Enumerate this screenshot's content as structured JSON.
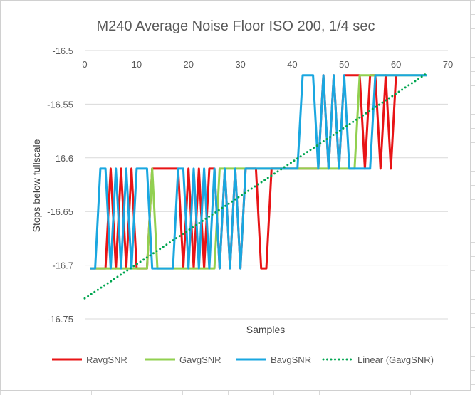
{
  "chart_data": {
    "type": "line",
    "title": "M240 Average Noise Floor ISO 200, 1/4 sec",
    "xlabel": "Samples",
    "ylabel": "Stops below fullscale",
    "xlim": [
      0,
      70
    ],
    "ylim": [
      -16.75,
      -16.5
    ],
    "x_ticks": [
      0,
      10,
      20,
      30,
      40,
      50,
      60,
      70
    ],
    "y_ticks": [
      -16.5,
      -16.55,
      -16.6,
      -16.65,
      -16.7,
      -16.75
    ],
    "y_tick_labels": [
      "-16.5",
      "-16.55",
      "-16.6",
      "-16.65",
      "-16.7",
      "-16.75"
    ],
    "grid": "horizontal",
    "legend_position": "bottom",
    "series": [
      {
        "name": "RavgSNR",
        "color": "#e81416",
        "style": "solid",
        "x": [
          1,
          2,
          3,
          4,
          5,
          6,
          7,
          8,
          9,
          10,
          11,
          12,
          13,
          14,
          15,
          16,
          17,
          18,
          19,
          20,
          21,
          22,
          23,
          24,
          25,
          26,
          27,
          28,
          29,
          30,
          31,
          32,
          33,
          34,
          35,
          36,
          37,
          38,
          39,
          40,
          41,
          42,
          43,
          44,
          45,
          46,
          47,
          48,
          49,
          50,
          51,
          52,
          53,
          54,
          55,
          56,
          57,
          58,
          59,
          60
        ],
        "y": [
          -16.703,
          -16.703,
          -16.703,
          -16.703,
          -16.61,
          -16.703,
          -16.61,
          -16.703,
          -16.61,
          -16.703,
          -16.703,
          -16.703,
          -16.61,
          -16.61,
          -16.61,
          -16.61,
          -16.61,
          -16.61,
          -16.703,
          -16.61,
          -16.703,
          -16.61,
          -16.703,
          -16.61,
          -16.61,
          -16.703,
          -16.61,
          -16.703,
          -16.61,
          -16.703,
          -16.61,
          -16.61,
          -16.61,
          -16.703,
          -16.703,
          -16.61,
          -16.61,
          -16.61,
          -16.61,
          -16.61,
          -16.61,
          -16.61,
          -16.61,
          -16.61,
          -16.61,
          -16.523,
          -16.61,
          -16.523,
          -16.61,
          -16.523,
          -16.523,
          -16.523,
          -16.523,
          -16.61,
          -16.523,
          -16.523,
          -16.61,
          -16.523,
          -16.61,
          -16.523
        ]
      },
      {
        "name": "GavgSNR",
        "color": "#92d050",
        "style": "solid",
        "x": [
          1,
          2,
          3,
          4,
          5,
          6,
          7,
          8,
          9,
          10,
          11,
          12,
          13,
          14,
          15,
          16,
          17,
          18,
          19,
          20,
          21,
          22,
          23,
          24,
          25,
          26,
          27,
          28,
          29,
          30,
          31,
          32,
          33,
          34,
          35,
          36,
          37,
          38,
          39,
          40,
          41,
          42,
          43,
          44,
          45,
          46,
          47,
          48,
          49,
          50,
          51,
          52,
          53,
          54,
          55,
          56,
          57,
          58,
          59,
          60,
          61,
          62,
          63,
          64,
          65,
          66
        ],
        "y": [
          -16.703,
          -16.703,
          -16.703,
          -16.703,
          -16.703,
          -16.703,
          -16.703,
          -16.703,
          -16.703,
          -16.703,
          -16.703,
          -16.703,
          -16.61,
          -16.703,
          -16.703,
          -16.703,
          -16.703,
          -16.703,
          -16.703,
          -16.703,
          -16.703,
          -16.703,
          -16.703,
          -16.703,
          -16.703,
          -16.61,
          -16.61,
          -16.61,
          -16.61,
          -16.61,
          -16.61,
          -16.61,
          -16.61,
          -16.61,
          -16.61,
          -16.61,
          -16.61,
          -16.61,
          -16.61,
          -16.61,
          -16.61,
          -16.61,
          -16.61,
          -16.61,
          -16.61,
          -16.61,
          -16.61,
          -16.61,
          -16.61,
          -16.61,
          -16.61,
          -16.61,
          -16.523,
          -16.523,
          -16.523,
          -16.523,
          -16.523,
          -16.523,
          -16.523,
          -16.523,
          -16.523,
          -16.523,
          -16.523,
          -16.523,
          -16.523,
          -16.523
        ]
      },
      {
        "name": "BavgSNR",
        "color": "#1aa7e0",
        "style": "solid",
        "x": [
          1,
          2,
          3,
          4,
          5,
          6,
          7,
          8,
          9,
          10,
          11,
          12,
          13,
          14,
          15,
          16,
          17,
          18,
          19,
          20,
          21,
          22,
          23,
          24,
          25,
          26,
          27,
          28,
          29,
          30,
          31,
          32,
          33,
          34,
          35,
          36,
          37,
          38,
          39,
          40,
          41,
          42,
          43,
          44,
          45,
          46,
          47,
          48,
          49,
          50,
          51,
          52,
          53,
          54,
          55,
          56,
          57,
          58,
          59,
          60,
          61,
          62,
          63,
          64,
          65,
          66
        ],
        "y": [
          -16.703,
          -16.703,
          -16.61,
          -16.61,
          -16.703,
          -16.61,
          -16.703,
          -16.61,
          -16.703,
          -16.61,
          -16.61,
          -16.61,
          -16.703,
          -16.703,
          -16.703,
          -16.703,
          -16.703,
          -16.61,
          -16.61,
          -16.703,
          -16.61,
          -16.703,
          -16.61,
          -16.703,
          -16.61,
          -16.703,
          -16.61,
          -16.703,
          -16.61,
          -16.703,
          -16.61,
          -16.61,
          -16.61,
          -16.61,
          -16.61,
          -16.61,
          -16.61,
          -16.61,
          -16.61,
          -16.61,
          -16.61,
          -16.523,
          -16.523,
          -16.523,
          -16.61,
          -16.523,
          -16.61,
          -16.523,
          -16.61,
          -16.523,
          -16.61,
          -16.61,
          -16.61,
          -16.61,
          -16.61,
          -16.523,
          -16.523,
          -16.523,
          -16.523,
          -16.523,
          -16.523,
          -16.523,
          -16.523,
          -16.523,
          -16.523,
          -16.523
        ]
      },
      {
        "name": "Linear (GavgSNR)",
        "color": "#00a550",
        "style": "dotted",
        "x": [
          0,
          66
        ],
        "y": [
          -16.731,
          -16.521
        ]
      }
    ]
  }
}
